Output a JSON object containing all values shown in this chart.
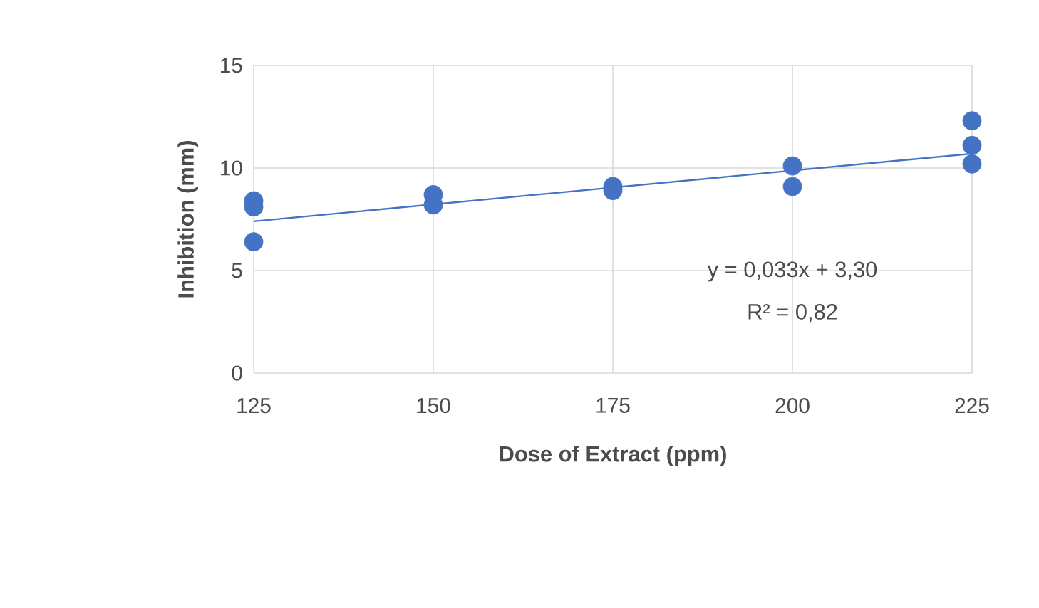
{
  "chart_data": {
    "type": "scatter",
    "xlabel": "Dose of Extract (ppm)",
    "ylabel": "Inhibition (mm)",
    "series": [
      {
        "color": "#4472c4",
        "x": [
          125,
          125,
          125,
          150,
          150,
          175,
          175,
          200,
          200,
          225,
          225,
          225
        ],
        "values": [
          8.4,
          8.1,
          6.4,
          8.7,
          8.2,
          9.1,
          8.9,
          10.1,
          9.1,
          12.3,
          11.1,
          10.2
        ]
      },
      {
        "type": "line",
        "marker": "none",
        "color": "#4472c4",
        "x": [
          125,
          225
        ],
        "values": [
          7.4,
          10.7
        ]
      }
    ],
    "xlim": [
      125,
      225
    ],
    "ylim": [
      0,
      15
    ],
    "xticks": [
      125,
      150,
      175,
      200,
      225
    ],
    "yticks": [
      0,
      5,
      10,
      15
    ],
    "grid": true,
    "marker": "circle",
    "annotations": [
      "y = 0,033x + 3,30",
      "R² = 0,82"
    ]
  }
}
